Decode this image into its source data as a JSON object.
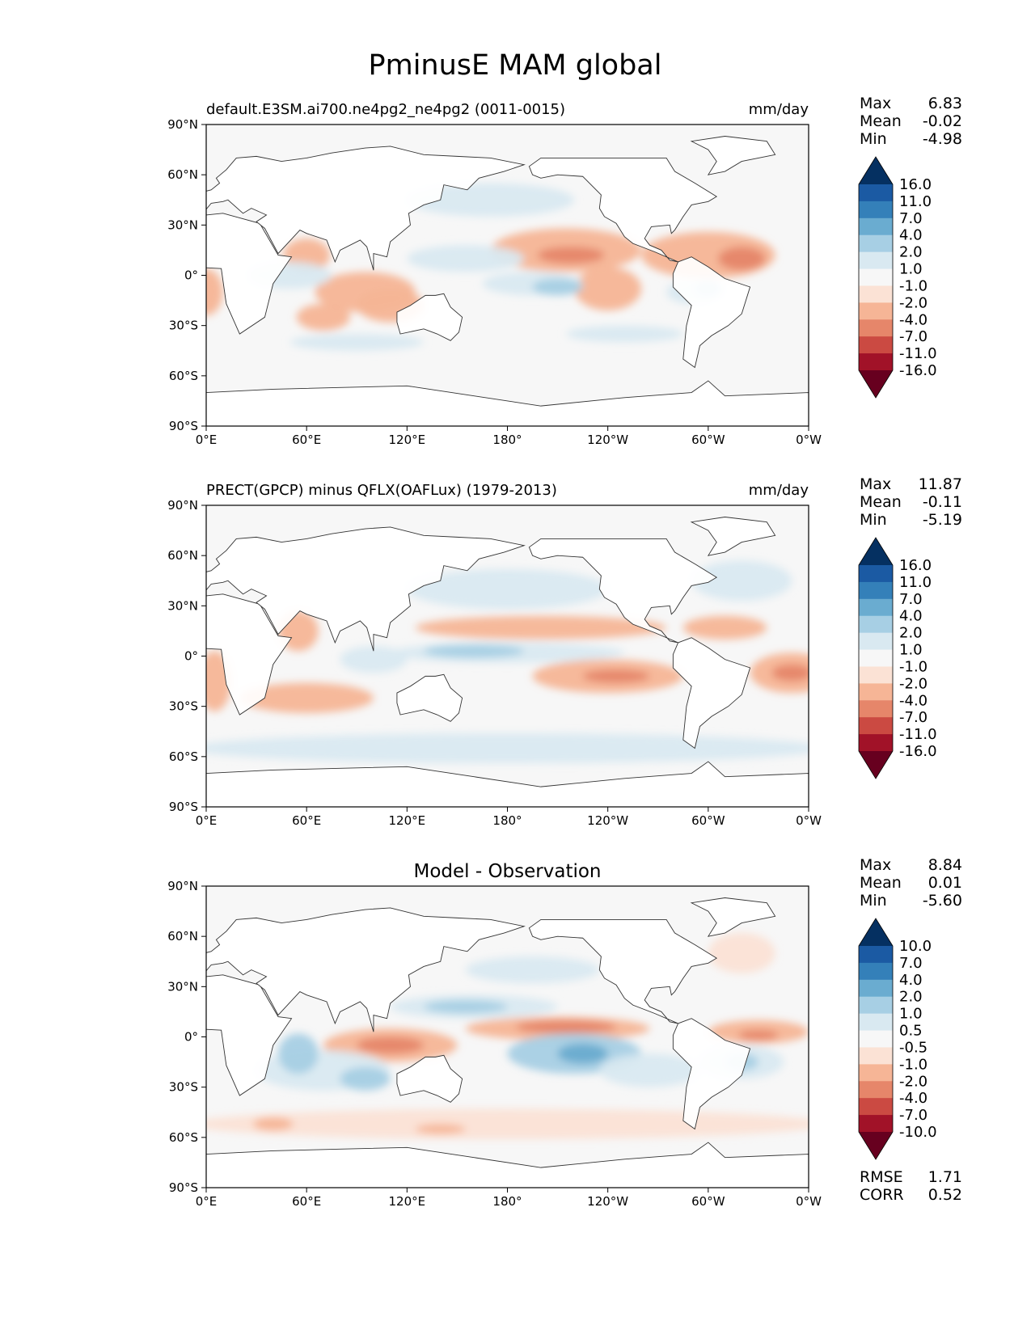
{
  "title": "PminusE MAM global",
  "x_ticks": [
    "0°E",
    "60°E",
    "120°E",
    "180°",
    "120°W",
    "60°W",
    "0°W"
  ],
  "y_ticks": [
    "90°N",
    "60°N",
    "30°N",
    "0°",
    "30°S",
    "60°S",
    "90°S"
  ],
  "colors": {
    "ocean_bg": "#f7f7f7",
    "land": "#ffffff",
    "coast": "#333333",
    "cbar": [
      "#67001f",
      "#a11228",
      "#cb4a42",
      "#e6866a",
      "#f6b596",
      "#fbe2d5",
      "#f7f7f7",
      "#d9e9f1",
      "#a7cfe4",
      "#6aacd0",
      "#3480b9",
      "#1b5aa3",
      "#053061"
    ]
  },
  "panels": [
    {
      "subtitle_left": "default.E3SM.ai700.ne4pg2_ne4pg2 (0011-0015)",
      "subtitle_center": "",
      "units": "mm/day",
      "stats": [
        {
          "label": "Max",
          "value": "6.83"
        },
        {
          "label": "Mean",
          "value": "-0.02"
        },
        {
          "label": "Min",
          "value": "-4.98"
        }
      ],
      "cbar_labels": [
        "16.0",
        "11.0",
        "7.0",
        "4.0",
        "2.0",
        "1.0",
        "-1.0",
        "-2.0",
        "-4.0",
        "-7.0",
        "-11.0",
        "-16.0"
      ],
      "extra_stats": [],
      "blobs": [
        {
          "lon": 95,
          "lat": -10,
          "rx": 30,
          "ry": 12,
          "v": -2
        },
        {
          "lon": 110,
          "lat": -18,
          "rx": 20,
          "ry": 10,
          "v": -2
        },
        {
          "lon": 215,
          "lat": 15,
          "rx": 45,
          "ry": 13,
          "v": -2
        },
        {
          "lon": 218,
          "lat": 12,
          "rx": 20,
          "ry": 5,
          "v": -4
        },
        {
          "lon": 300,
          "lat": 12,
          "rx": 40,
          "ry": 14,
          "v": -2
        },
        {
          "lon": 320,
          "lat": 10,
          "rx": 14,
          "ry": 7,
          "v": -4
        },
        {
          "lon": 240,
          "lat": -8,
          "rx": 20,
          "ry": 13,
          "v": -2
        },
        {
          "lon": 60,
          "lat": 12,
          "rx": 14,
          "ry": 10,
          "v": -2
        },
        {
          "lon": 0,
          "lat": -10,
          "rx": 10,
          "ry": 14,
          "v": -2
        },
        {
          "lon": 70,
          "lat": -25,
          "rx": 16,
          "ry": 8,
          "v": -2
        },
        {
          "lon": 170,
          "lat": 45,
          "rx": 50,
          "ry": 10,
          "v": 2
        },
        {
          "lon": 155,
          "lat": 10,
          "rx": 35,
          "ry": 8,
          "v": 2
        },
        {
          "lon": 195,
          "lat": -5,
          "rx": 30,
          "ry": 7,
          "v": 2
        },
        {
          "lon": 210,
          "lat": -7,
          "rx": 15,
          "ry": 5,
          "v": 4
        },
        {
          "lon": 50,
          "lat": 0,
          "rx": 25,
          "ry": 8,
          "v": 2
        },
        {
          "lon": 290,
          "lat": -10,
          "rx": 15,
          "ry": 7,
          "v": 2
        },
        {
          "lon": 300,
          "lat": -8,
          "rx": 8,
          "ry": 5,
          "v": 4
        },
        {
          "lon": 90,
          "lat": -40,
          "rx": 40,
          "ry": 5,
          "v": 1.5
        },
        {
          "lon": 250,
          "lat": -35,
          "rx": 35,
          "ry": 5,
          "v": 1.5
        }
      ]
    },
    {
      "subtitle_left": "PRECT(GPCP) minus QFLX(OAFLux) (1979-2013)",
      "subtitle_center": "",
      "units": "mm/day",
      "stats": [
        {
          "label": "Max",
          "value": "11.87"
        },
        {
          "label": "Mean",
          "value": "-0.11"
        },
        {
          "label": "Min",
          "value": "-5.19"
        }
      ],
      "cbar_labels": [
        "16.0",
        "11.0",
        "7.0",
        "4.0",
        "2.0",
        "1.0",
        "-1.0",
        "-2.0",
        "-4.0",
        "-7.0",
        "-11.0",
        "-16.0"
      ],
      "extra_stats": [],
      "blobs": [
        {
          "lon": 180,
          "lat": -55,
          "rx": 190,
          "ry": 9,
          "v": 2
        },
        {
          "lon": 180,
          "lat": 40,
          "rx": 60,
          "ry": 12,
          "v": 2
        },
        {
          "lon": 320,
          "lat": 45,
          "rx": 30,
          "ry": 12,
          "v": 2
        },
        {
          "lon": 180,
          "lat": 2,
          "rx": 70,
          "ry": 6,
          "v": 2
        },
        {
          "lon": 160,
          "lat": 3,
          "rx": 30,
          "ry": 4,
          "v": 4
        },
        {
          "lon": 100,
          "lat": -2,
          "rx": 20,
          "ry": 8,
          "v": 2
        },
        {
          "lon": 200,
          "lat": 17,
          "rx": 75,
          "ry": 7,
          "v": -2
        },
        {
          "lon": 240,
          "lat": -12,
          "rx": 45,
          "ry": 10,
          "v": -2
        },
        {
          "lon": 245,
          "lat": -12,
          "rx": 20,
          "ry": 4,
          "v": -4
        },
        {
          "lon": 350,
          "lat": -10,
          "rx": 25,
          "ry": 12,
          "v": -2
        },
        {
          "lon": 350,
          "lat": -10,
          "rx": 12,
          "ry": 5,
          "v": -4
        },
        {
          "lon": 60,
          "lat": -25,
          "rx": 40,
          "ry": 9,
          "v": -2
        },
        {
          "lon": 5,
          "lat": -15,
          "rx": 10,
          "ry": 18,
          "v": -2
        },
        {
          "lon": 310,
          "lat": 17,
          "rx": 25,
          "ry": 7,
          "v": -2
        },
        {
          "lon": 55,
          "lat": 15,
          "rx": 12,
          "ry": 12,
          "v": -2
        }
      ]
    },
    {
      "subtitle_left": "",
      "subtitle_center": "Model - Observation",
      "units": "",
      "stats": [
        {
          "label": "Max",
          "value": "8.84"
        },
        {
          "label": "Mean",
          "value": "0.01"
        },
        {
          "label": "Min",
          "value": "-5.60"
        }
      ],
      "cbar_labels": [
        "10.0",
        "7.0",
        "4.0",
        "2.0",
        "1.0",
        "0.5",
        "-0.5",
        "-1.0",
        "-2.0",
        "-4.0",
        "-7.0",
        "-10.0"
      ],
      "extra_stats": [
        {
          "label": "RMSE",
          "value": "1.71"
        },
        {
          "label": "CORR",
          "value": "0.52"
        }
      ],
      "blobs": [
        {
          "lon": 180,
          "lat": -52,
          "rx": 190,
          "ry": 9,
          "v": -1.5
        },
        {
          "lon": 140,
          "lat": -55,
          "rx": 15,
          "ry": 3,
          "v": -3
        },
        {
          "lon": 40,
          "lat": -52,
          "rx": 12,
          "ry": 4,
          "v": -3
        },
        {
          "lon": 110,
          "lat": -5,
          "rx": 40,
          "ry": 10,
          "v": -2
        },
        {
          "lon": 110,
          "lat": -5,
          "rx": 20,
          "ry": 5,
          "v": -4
        },
        {
          "lon": 210,
          "lat": 5,
          "rx": 55,
          "ry": 7,
          "v": -2
        },
        {
          "lon": 215,
          "lat": 6,
          "rx": 30,
          "ry": 4,
          "v": -4
        },
        {
          "lon": 330,
          "lat": 3,
          "rx": 30,
          "ry": 7,
          "v": -2
        },
        {
          "lon": 330,
          "lat": 1,
          "rx": 12,
          "ry": 3,
          "v": -5
        },
        {
          "lon": 160,
          "lat": 18,
          "rx": 50,
          "ry": 7,
          "v": 1.5
        },
        {
          "lon": 155,
          "lat": 18,
          "rx": 25,
          "ry": 4,
          "v": 3
        },
        {
          "lon": 220,
          "lat": -10,
          "rx": 40,
          "ry": 12,
          "v": 3
        },
        {
          "lon": 225,
          "lat": -10,
          "rx": 15,
          "ry": 6,
          "v": 6
        },
        {
          "lon": 320,
          "lat": -15,
          "rx": 25,
          "ry": 10,
          "v": 2
        },
        {
          "lon": 320,
          "lat": -15,
          "rx": 10,
          "ry": 5,
          "v": 4
        },
        {
          "lon": 70,
          "lat": -20,
          "rx": 40,
          "ry": 12,
          "v": 1.5
        },
        {
          "lon": 55,
          "lat": -10,
          "rx": 12,
          "ry": 12,
          "v": 3
        },
        {
          "lon": 95,
          "lat": -25,
          "rx": 15,
          "ry": 7,
          "v": 3
        },
        {
          "lon": 265,
          "lat": -20,
          "rx": 30,
          "ry": 10,
          "v": 1.5
        },
        {
          "lon": 320,
          "lat": 50,
          "rx": 20,
          "ry": 12,
          "v": -1.5
        },
        {
          "lon": 195,
          "lat": 40,
          "rx": 40,
          "ry": 8,
          "v": 1.5
        }
      ]
    }
  ]
}
